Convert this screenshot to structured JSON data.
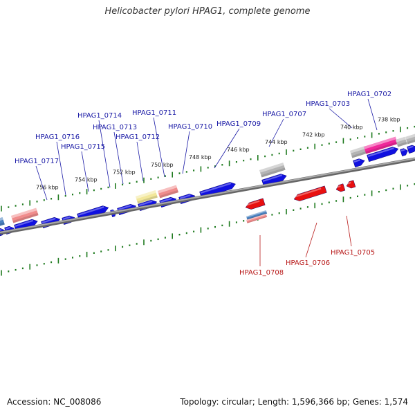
{
  "title": "Helicobacter pylori HPAG1, complete genome",
  "footer": {
    "accession": "Accession: NC_008086",
    "summary": "Topology: circular; Length: 1,596,366 bp; Genes: 1,574"
  },
  "colors": {
    "forward_label": "#1a1aa6",
    "reverse_label": "#b81818",
    "gene_blue": "#1010e0",
    "gene_red": "#e81010",
    "tick": "#1e7a1e",
    "backbone": "#888888",
    "salmon": "#f08c8c",
    "gray": "#b4b4b4",
    "yellow": "#f2e79a",
    "pink": "#f0289a",
    "steel": "#4a82c0"
  },
  "scale_labels": [
    "756 kbp",
    "754 kbp",
    "752 kbp",
    "750 kbp",
    "748 kbp",
    "746 kbp",
    "744 kbp",
    "742 kbp",
    "740 kbp",
    "738 kbp"
  ],
  "forward_genes": [
    "HPAG1_0717",
    "HPAG1_0716",
    "HPAG1_0715",
    "HPAG1_0714",
    "HPAG1_0713",
    "HPAG1_0712",
    "HPAG1_0711",
    "HPAG1_0710",
    "HPAG1_0709",
    "HPAG1_0707",
    "HPAG1_0703",
    "HPAG1_0702"
  ],
  "reverse_genes": [
    "HPAG1_0708",
    "HPAG1_0706",
    "HPAG1_0705"
  ]
}
